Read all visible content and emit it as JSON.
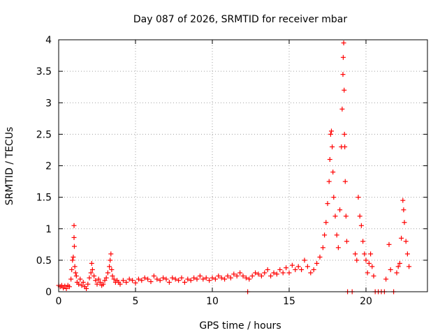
{
  "chart_data": {
    "type": "scatter",
    "title": "Day 087 of 2026, SRMTID for receiver mbar",
    "xlabel": "GPS time / hours",
    "ylabel": "SRMTID / TECUs",
    "xlim": [
      0,
      24
    ],
    "ylim": [
      0,
      4
    ],
    "x_ticks": [
      0,
      5,
      10,
      15,
      20
    ],
    "x_tick_labels": [
      "0",
      "5",
      "10",
      "15",
      "20"
    ],
    "y_ticks": [
      0,
      0.5,
      1,
      1.5,
      2,
      2.5,
      3,
      3.5,
      4
    ],
    "y_tick_labels": [
      "0",
      "0.5",
      "1",
      "1.5",
      "2",
      "2.5",
      "3",
      "3.5",
      "4"
    ],
    "grid": true,
    "marker": "+",
    "series": [
      {
        "name": "SRMTID",
        "color": "#ff0000",
        "points": [
          [
            0.0,
            0.1
          ],
          [
            0.1,
            0.08
          ],
          [
            0.2,
            0.1
          ],
          [
            0.3,
            0.06
          ],
          [
            0.4,
            0.09
          ],
          [
            0.5,
            0.05
          ],
          [
            0.6,
            0.1
          ],
          [
            0.7,
            0.08
          ],
          [
            0.8,
            0.2
          ],
          [
            0.85,
            0.35
          ],
          [
            0.9,
            0.5
          ],
          [
            0.95,
            0.55
          ],
          [
            1.0,
            1.05
          ],
          [
            1.0,
            0.86
          ],
          [
            1.02,
            0.72
          ],
          [
            1.05,
            0.4
          ],
          [
            1.1,
            0.3
          ],
          [
            1.15,
            0.25
          ],
          [
            1.2,
            0.15
          ],
          [
            1.3,
            0.12
          ],
          [
            1.4,
            0.2
          ],
          [
            1.5,
            0.1
          ],
          [
            1.6,
            0.15
          ],
          [
            1.7,
            0.08
          ],
          [
            1.8,
            0.05
          ],
          [
            1.9,
            0.12
          ],
          [
            2.0,
            0.22
          ],
          [
            2.1,
            0.3
          ],
          [
            2.15,
            0.45
          ],
          [
            2.2,
            0.35
          ],
          [
            2.3,
            0.25
          ],
          [
            2.4,
            0.18
          ],
          [
            2.5,
            0.12
          ],
          [
            2.6,
            0.2
          ],
          [
            2.7,
            0.15
          ],
          [
            2.8,
            0.1
          ],
          [
            2.9,
            0.12
          ],
          [
            3.0,
            0.18
          ],
          [
            3.1,
            0.22
          ],
          [
            3.2,
            0.3
          ],
          [
            3.3,
            0.4
          ],
          [
            3.35,
            0.5
          ],
          [
            3.4,
            0.6
          ],
          [
            3.45,
            0.35
          ],
          [
            3.5,
            0.25
          ],
          [
            3.6,
            0.2
          ],
          [
            3.7,
            0.15
          ],
          [
            3.8,
            0.18
          ],
          [
            3.9,
            0.15
          ],
          [
            4.0,
            0.12
          ],
          [
            4.2,
            0.18
          ],
          [
            4.4,
            0.15
          ],
          [
            4.6,
            0.2
          ],
          [
            4.8,
            0.18
          ],
          [
            5.0,
            0.14
          ],
          [
            5.2,
            0.2
          ],
          [
            5.4,
            0.18
          ],
          [
            5.6,
            0.22
          ],
          [
            5.8,
            0.2
          ],
          [
            6.0,
            0.16
          ],
          [
            6.2,
            0.25
          ],
          [
            6.4,
            0.2
          ],
          [
            6.6,
            0.18
          ],
          [
            6.8,
            0.22
          ],
          [
            7.0,
            0.2
          ],
          [
            7.2,
            0.15
          ],
          [
            7.4,
            0.22
          ],
          [
            7.6,
            0.2
          ],
          [
            7.8,
            0.18
          ],
          [
            8.0,
            0.22
          ],
          [
            8.2,
            0.15
          ],
          [
            8.4,
            0.2
          ],
          [
            8.6,
            0.18
          ],
          [
            8.8,
            0.22
          ],
          [
            9.0,
            0.2
          ],
          [
            9.2,
            0.25
          ],
          [
            9.4,
            0.2
          ],
          [
            9.6,
            0.22
          ],
          [
            9.8,
            0.18
          ],
          [
            10.0,
            0.22
          ],
          [
            10.2,
            0.2
          ],
          [
            10.4,
            0.25
          ],
          [
            10.6,
            0.22
          ],
          [
            10.8,
            0.2
          ],
          [
            11.0,
            0.25
          ],
          [
            11.2,
            0.22
          ],
          [
            11.4,
            0.28
          ],
          [
            11.6,
            0.25
          ],
          [
            11.8,
            0.3
          ],
          [
            12.0,
            0.25
          ],
          [
            12.2,
            0.22
          ],
          [
            12.3,
            0.0
          ],
          [
            12.4,
            0.2
          ],
          [
            12.6,
            0.25
          ],
          [
            12.8,
            0.3
          ],
          [
            13.0,
            0.28
          ],
          [
            13.2,
            0.25
          ],
          [
            13.4,
            0.3
          ],
          [
            13.6,
            0.35
          ],
          [
            13.8,
            0.25
          ],
          [
            14.0,
            0.3
          ],
          [
            14.2,
            0.28
          ],
          [
            14.4,
            0.35
          ],
          [
            14.6,
            0.3
          ],
          [
            14.8,
            0.38
          ],
          [
            15.0,
            0.3
          ],
          [
            15.2,
            0.42
          ],
          [
            15.4,
            0.35
          ],
          [
            15.6,
            0.4
          ],
          [
            15.8,
            0.35
          ],
          [
            16.0,
            0.5
          ],
          [
            16.2,
            0.4
          ],
          [
            16.4,
            0.3
          ],
          [
            16.6,
            0.35
          ],
          [
            16.8,
            0.45
          ],
          [
            17.0,
            0.55
          ],
          [
            17.2,
            0.7
          ],
          [
            17.3,
            0.9
          ],
          [
            17.4,
            1.1
          ],
          [
            17.5,
            1.4
          ],
          [
            17.6,
            1.75
          ],
          [
            17.65,
            2.1
          ],
          [
            17.7,
            2.5
          ],
          [
            17.75,
            2.55
          ],
          [
            17.8,
            2.3
          ],
          [
            17.85,
            1.9
          ],
          [
            17.9,
            1.5
          ],
          [
            18.0,
            1.2
          ],
          [
            18.1,
            0.9
          ],
          [
            18.2,
            0.7
          ],
          [
            18.3,
            1.3
          ],
          [
            18.4,
            2.3
          ],
          [
            18.45,
            2.9
          ],
          [
            18.5,
            3.45
          ],
          [
            18.52,
            3.72
          ],
          [
            18.55,
            3.95
          ],
          [
            18.58,
            3.2
          ],
          [
            18.6,
            2.5
          ],
          [
            18.62,
            2.3
          ],
          [
            18.65,
            1.75
          ],
          [
            18.7,
            1.2
          ],
          [
            18.75,
            0.8
          ],
          [
            18.8,
            0.0
          ],
          [
            19.1,
            0.0
          ],
          [
            19.3,
            0.6
          ],
          [
            19.4,
            0.5
          ],
          [
            19.5,
            1.5
          ],
          [
            19.6,
            1.2
          ],
          [
            19.7,
            1.05
          ],
          [
            19.8,
            0.8
          ],
          [
            19.9,
            0.6
          ],
          [
            20.0,
            0.5
          ],
          [
            20.1,
            0.3
          ],
          [
            20.2,
            0.45
          ],
          [
            20.3,
            0.6
          ],
          [
            20.4,
            0.4
          ],
          [
            20.5,
            0.25
          ],
          [
            20.6,
            0.0
          ],
          [
            20.8,
            0.0
          ],
          [
            21.0,
            0.0
          ],
          [
            21.2,
            0.0
          ],
          [
            21.3,
            0.2
          ],
          [
            21.5,
            0.75
          ],
          [
            21.6,
            0.35
          ],
          [
            21.8,
            0.0
          ],
          [
            22.0,
            0.3
          ],
          [
            22.1,
            0.4
          ],
          [
            22.2,
            0.45
          ],
          [
            22.3,
            0.85
          ],
          [
            22.4,
            1.45
          ],
          [
            22.45,
            1.3
          ],
          [
            22.5,
            1.1
          ],
          [
            22.6,
            0.8
          ],
          [
            22.7,
            0.6
          ],
          [
            22.8,
            0.4
          ]
        ]
      }
    ]
  }
}
